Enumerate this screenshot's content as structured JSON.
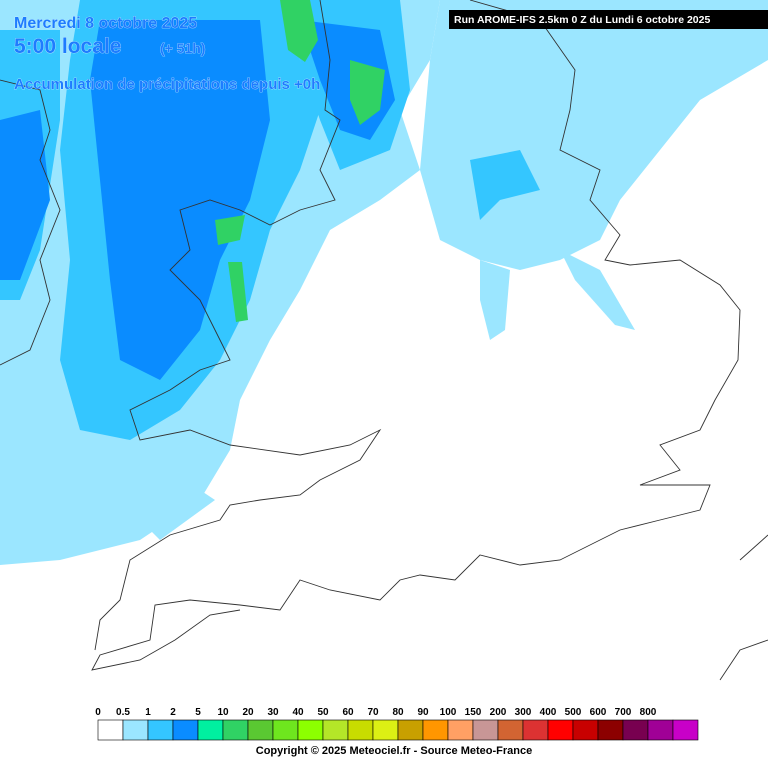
{
  "header": {
    "date": "Mercredi 8 octobre 2025",
    "time": "5:00 locale",
    "lead": "(+ 51h)",
    "field": "Accumulation de précipitations depuis +0h",
    "run": "Run AROME-IFS 2.5km 0 Z du Lundi 6 octobre 2025"
  },
  "legend": {
    "labels": [
      "0",
      "0.5",
      "1",
      "2",
      "5",
      "10",
      "20",
      "30",
      "40",
      "50",
      "60",
      "70",
      "80",
      "90",
      "100",
      "150",
      "200",
      "300",
      "400",
      "500",
      "600",
      "700",
      "800"
    ],
    "colors": [
      "#ffffff",
      "#9be6ff",
      "#34c6ff",
      "#0a8cff",
      "#00f0a0",
      "#30d264",
      "#5ac832",
      "#6ee61e",
      "#8cff00",
      "#b4e628",
      "#c8dc00",
      "#dcf014",
      "#c8a000",
      "#ff9600",
      "#ffa064",
      "#c89696",
      "#d26432",
      "#dc3232",
      "#ff0000",
      "#c80000",
      "#8c0000",
      "#780050",
      "#a00096",
      "#c800c8"
    ]
  },
  "footer": {
    "copyright": "Copyright © 2025 Meteociel.fr - Source Meteo-France"
  }
}
